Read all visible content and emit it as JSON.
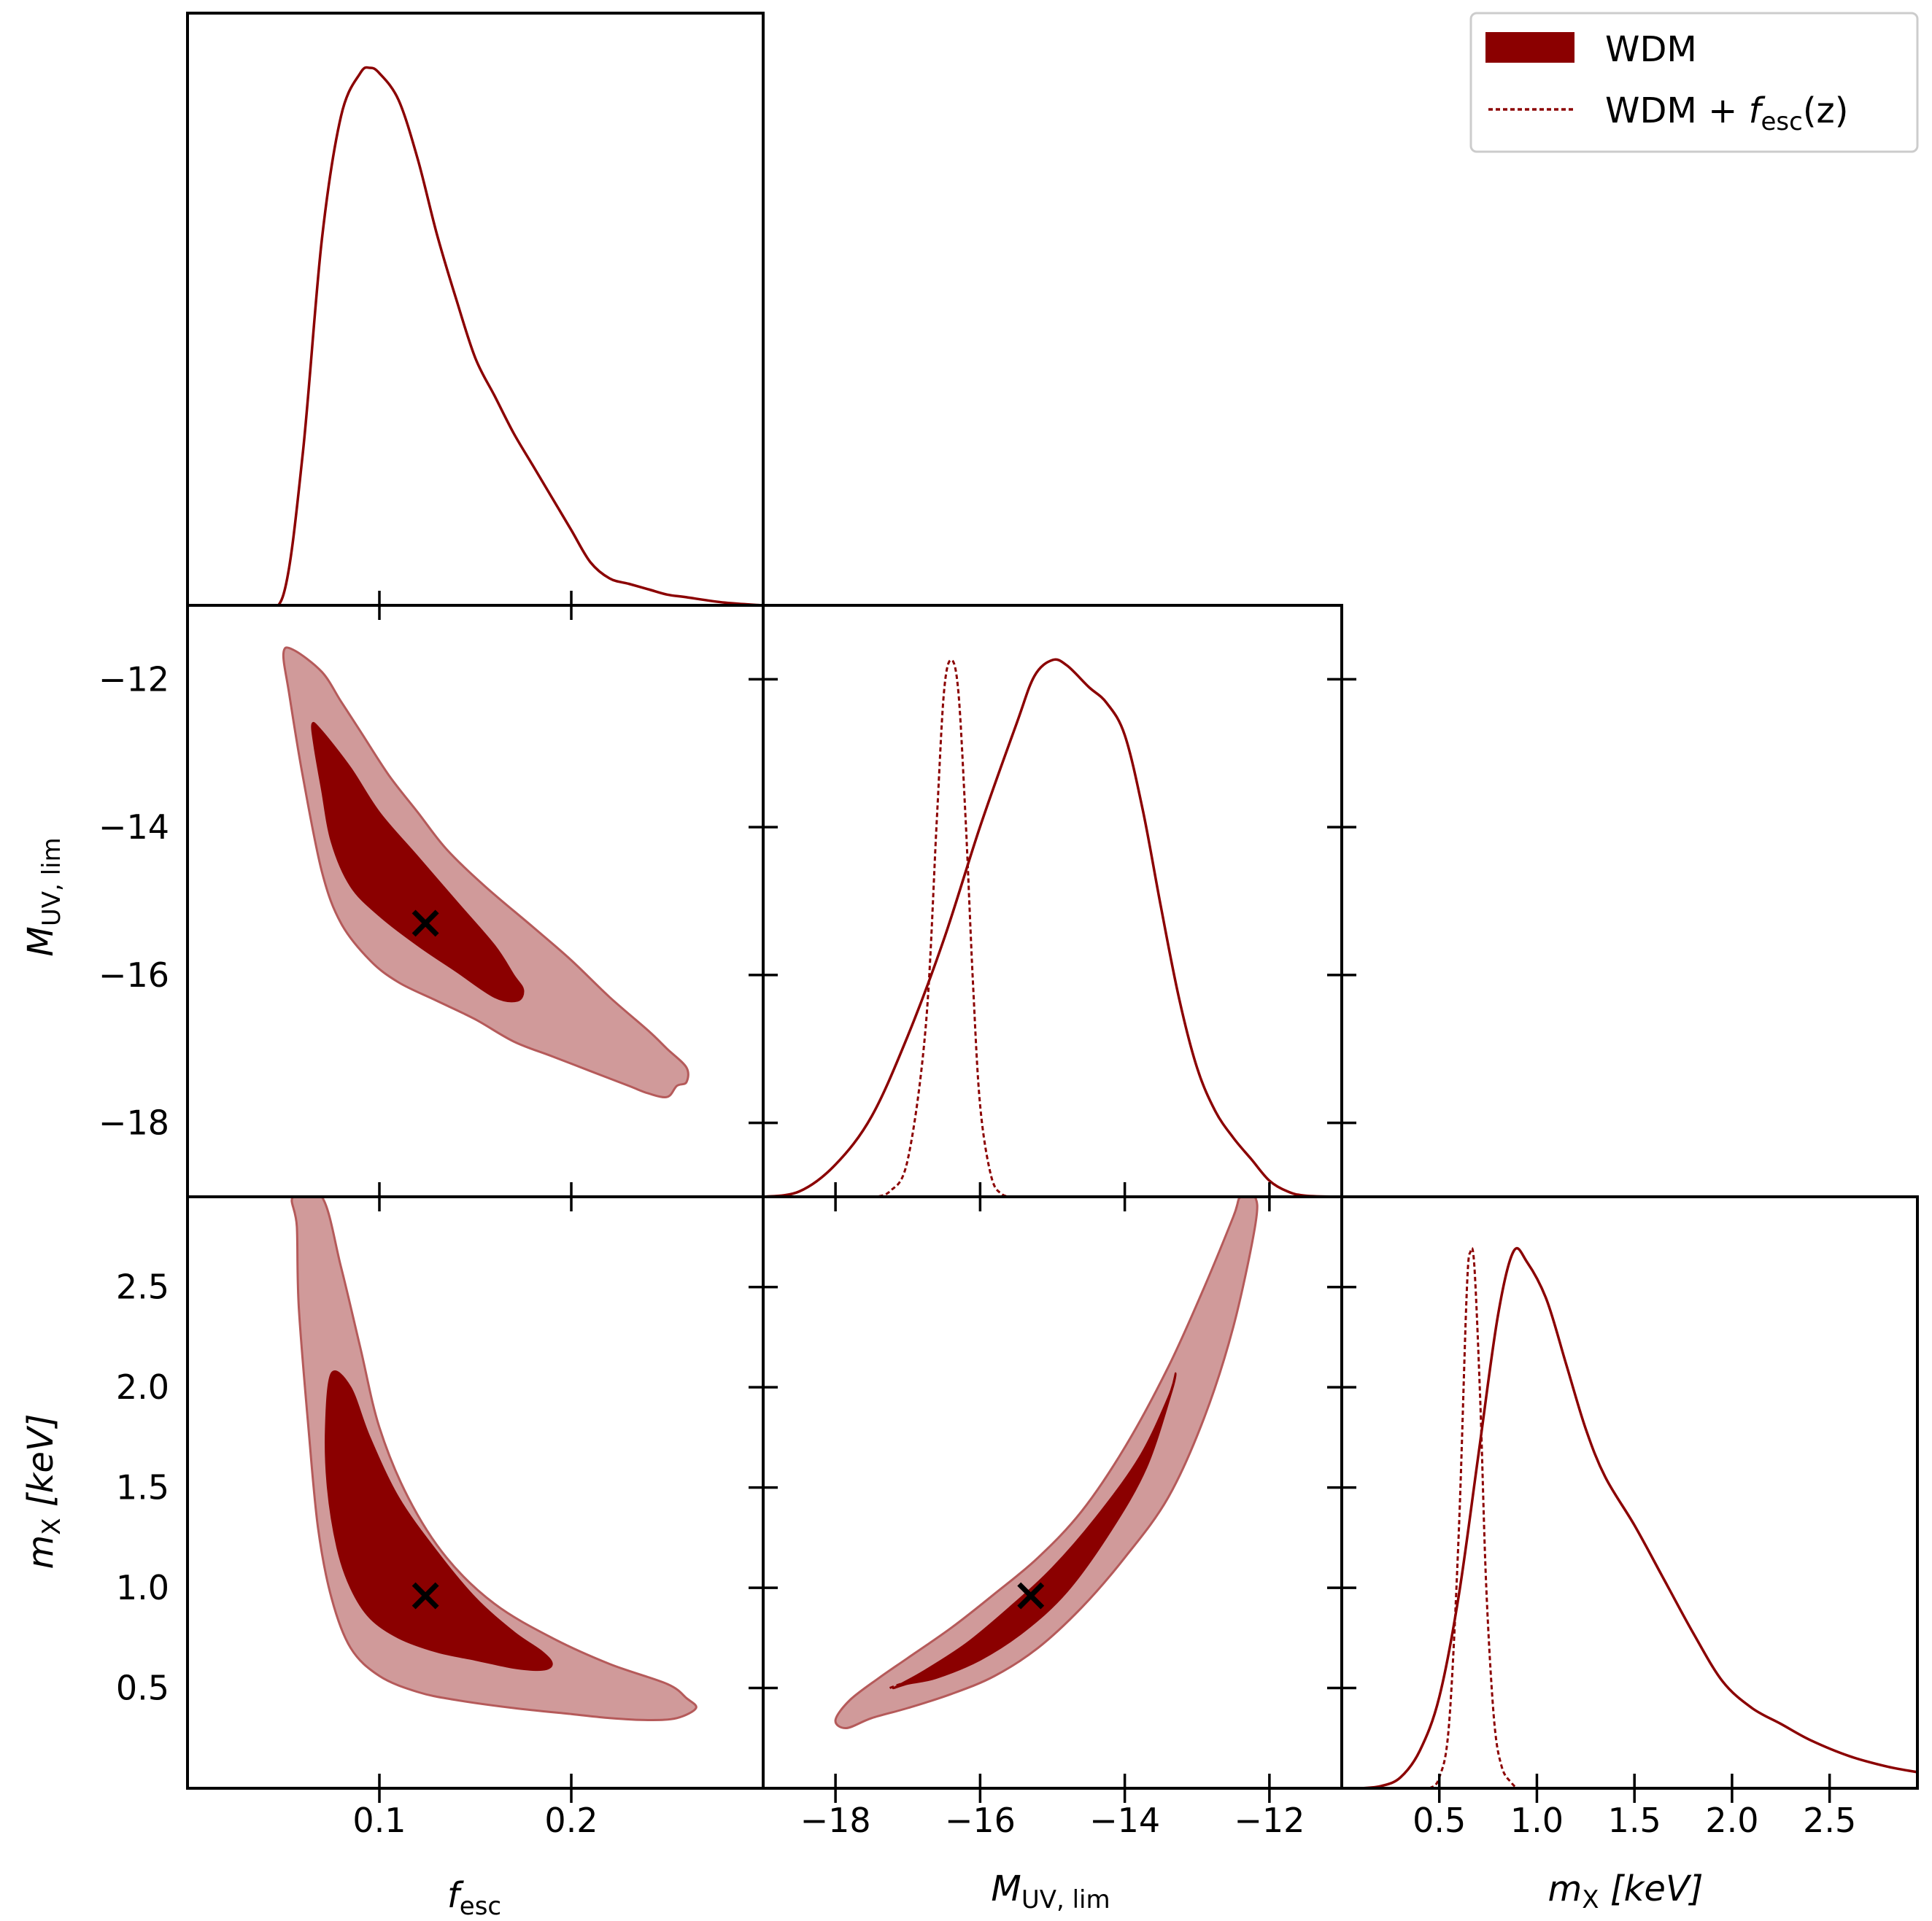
{
  "legend": {
    "placement": "top-right",
    "entries": [
      {
        "label": "WDM",
        "style": "filled"
      },
      {
        "label": "WDM + f_esc(z)",
        "label_main": "WDM + ",
        "label_f": "f",
        "label_sub": "esc",
        "label_arg": "(z)",
        "style": "dashed"
      }
    ]
  },
  "colors": {
    "wdm": "#8b0000",
    "wdm_contour_outer": "#d09a9a",
    "wdm_contour_outer_edge": "#b55a5a",
    "best_fit_marker": "#000000"
  },
  "axis_labels": {
    "fesc": {
      "main": "f",
      "sub": "esc"
    },
    "muv": {
      "main": "M",
      "sub": "UV, lim"
    },
    "mx": {
      "main": "m",
      "sub": "X",
      "unit": "[keV]"
    }
  },
  "chart_data": {
    "type": "corner",
    "parameters": [
      "fesc",
      "muv",
      "mx"
    ],
    "ranges": {
      "fesc": [
        0.0,
        0.3
      ],
      "muv": [
        -19.0,
        -11.0
      ],
      "mx": [
        0.0,
        2.95
      ]
    },
    "ticks": {
      "fesc": {
        "values": [
          0.1,
          0.2
        ],
        "labels": [
          "0.1",
          "0.2"
        ]
      },
      "muv": {
        "values": [
          -18,
          -16,
          -14,
          -12
        ],
        "labels": [
          "−18",
          "−16",
          "−14",
          "−12"
        ]
      },
      "mx_left": {
        "values": [
          0.5,
          1.0,
          1.5,
          2.0,
          2.5
        ],
        "labels": [
          "0.5",
          "1.0",
          "1.5",
          "2.0",
          "2.5"
        ]
      },
      "mx_bottom": {
        "values": [
          0.5,
          1.0,
          1.5,
          2.0,
          2.5
        ],
        "labels": [
          "0.5",
          "1.0",
          "1.5",
          "2.0",
          "2.5"
        ]
      }
    },
    "best_fit": {
      "fesc": 0.124,
      "muv": -15.3,
      "mx": 0.96
    },
    "marginals": {
      "fesc_wdm": [
        [
          0.037,
          0
        ],
        [
          0.05,
          0.02
        ],
        [
          0.06,
          0.28
        ],
        [
          0.07,
          0.68
        ],
        [
          0.08,
          0.91
        ],
        [
          0.09,
          0.99
        ],
        [
          0.095,
          1.0
        ],
        [
          0.1,
          0.99
        ],
        [
          0.11,
          0.94
        ],
        [
          0.12,
          0.83
        ],
        [
          0.13,
          0.69
        ],
        [
          0.14,
          0.57
        ],
        [
          0.15,
          0.46
        ],
        [
          0.16,
          0.39
        ],
        [
          0.17,
          0.32
        ],
        [
          0.18,
          0.26
        ],
        [
          0.19,
          0.2
        ],
        [
          0.2,
          0.14
        ],
        [
          0.21,
          0.08
        ],
        [
          0.22,
          0.05
        ],
        [
          0.23,
          0.04
        ],
        [
          0.24,
          0.03
        ],
        [
          0.25,
          0.02
        ],
        [
          0.26,
          0.015
        ],
        [
          0.28,
          0.005
        ],
        [
          0.3,
          0
        ]
      ],
      "muv_wdm": [
        [
          -19,
          0
        ],
        [
          -18.5,
          0.01
        ],
        [
          -18,
          0.06
        ],
        [
          -17.5,
          0.15
        ],
        [
          -17,
          0.3
        ],
        [
          -16.5,
          0.48
        ],
        [
          -16,
          0.69
        ],
        [
          -15.5,
          0.88
        ],
        [
          -15.25,
          0.97
        ],
        [
          -15,
          1.0
        ],
        [
          -14.8,
          0.99
        ],
        [
          -14.5,
          0.95
        ],
        [
          -14.25,
          0.92
        ],
        [
          -14,
          0.86
        ],
        [
          -13.75,
          0.72
        ],
        [
          -13.5,
          0.54
        ],
        [
          -13.25,
          0.37
        ],
        [
          -13,
          0.24
        ],
        [
          -12.75,
          0.16
        ],
        [
          -12.5,
          0.11
        ],
        [
          -12.25,
          0.07
        ],
        [
          -12,
          0.03
        ],
        [
          -11.75,
          0.01
        ],
        [
          -11.5,
          0.002
        ],
        [
          -11,
          0
        ]
      ],
      "muv_wdm_fesc_z": [
        [
          -17.5,
          0
        ],
        [
          -17.25,
          0.01
        ],
        [
          -17,
          0.07
        ],
        [
          -16.75,
          0.32
        ],
        [
          -16.6,
          0.7
        ],
        [
          -16.5,
          0.94
        ],
        [
          -16.4,
          1.0
        ],
        [
          -16.3,
          0.94
        ],
        [
          -16.2,
          0.7
        ],
        [
          -16.1,
          0.4
        ],
        [
          -16,
          0.17
        ],
        [
          -15.85,
          0.04
        ],
        [
          -15.7,
          0.005
        ],
        [
          -15.5,
          0
        ]
      ],
      "mx_wdm": [
        [
          0.1,
          0
        ],
        [
          0.2,
          0.004
        ],
        [
          0.3,
          0.02
        ],
        [
          0.4,
          0.07
        ],
        [
          0.5,
          0.17
        ],
        [
          0.6,
          0.36
        ],
        [
          0.7,
          0.62
        ],
        [
          0.8,
          0.88
        ],
        [
          0.88,
          1.0
        ],
        [
          0.95,
          0.98
        ],
        [
          1.05,
          0.91
        ],
        [
          1.15,
          0.79
        ],
        [
          1.25,
          0.67
        ],
        [
          1.35,
          0.58
        ],
        [
          1.5,
          0.49
        ],
        [
          1.65,
          0.39
        ],
        [
          1.8,
          0.29
        ],
        [
          1.95,
          0.2
        ],
        [
          2.1,
          0.15
        ],
        [
          2.25,
          0.12
        ],
        [
          2.4,
          0.09
        ],
        [
          2.6,
          0.06
        ],
        [
          2.8,
          0.04
        ],
        [
          2.95,
          0.03
        ]
      ],
      "mx_wdm_fesc_z": [
        [
          0.45,
          0
        ],
        [
          0.5,
          0.02
        ],
        [
          0.55,
          0.12
        ],
        [
          0.6,
          0.48
        ],
        [
          0.64,
          0.92
        ],
        [
          0.66,
          1.0
        ],
        [
          0.68,
          0.97
        ],
        [
          0.71,
          0.72
        ],
        [
          0.74,
          0.38
        ],
        [
          0.78,
          0.13
        ],
        [
          0.82,
          0.04
        ],
        [
          0.87,
          0.01
        ],
        [
          0.9,
          0
        ]
      ]
    },
    "contours": {
      "fesc_muv": {
        "outer": [
          [
            0.05,
            -11.65
          ],
          [
            0.055,
            -11.6
          ],
          [
            0.07,
            -11.9
          ],
          [
            0.08,
            -12.3
          ],
          [
            0.09,
            -12.7
          ],
          [
            0.105,
            -13.3
          ],
          [
            0.12,
            -13.8
          ],
          [
            0.135,
            -14.3
          ],
          [
            0.155,
            -14.8
          ],
          [
            0.18,
            -15.35
          ],
          [
            0.2,
            -15.8
          ],
          [
            0.22,
            -16.3
          ],
          [
            0.24,
            -16.75
          ],
          [
            0.25,
            -17.0
          ],
          [
            0.26,
            -17.25
          ],
          [
            0.26,
            -17.45
          ],
          [
            0.255,
            -17.5
          ],
          [
            0.25,
            -17.65
          ],
          [
            0.24,
            -17.6
          ],
          [
            0.23,
            -17.5
          ],
          [
            0.21,
            -17.3
          ],
          [
            0.19,
            -17.1
          ],
          [
            0.17,
            -16.9
          ],
          [
            0.15,
            -16.6
          ],
          [
            0.13,
            -16.35
          ],
          [
            0.11,
            -16.1
          ],
          [
            0.095,
            -15.8
          ],
          [
            0.08,
            -15.3
          ],
          [
            0.07,
            -14.6
          ],
          [
            0.06,
            -13.3
          ],
          [
            0.053,
            -12.2
          ]
        ],
        "inner": [
          [
            0.065,
            -12.6
          ],
          [
            0.07,
            -12.7
          ],
          [
            0.085,
            -13.2
          ],
          [
            0.1,
            -13.8
          ],
          [
            0.12,
            -14.4
          ],
          [
            0.14,
            -15.0
          ],
          [
            0.16,
            -15.6
          ],
          [
            0.17,
            -16.0
          ],
          [
            0.175,
            -16.2
          ],
          [
            0.172,
            -16.35
          ],
          [
            0.16,
            -16.3
          ],
          [
            0.14,
            -15.95
          ],
          [
            0.12,
            -15.6
          ],
          [
            0.1,
            -15.2
          ],
          [
            0.085,
            -14.8
          ],
          [
            0.075,
            -14.2
          ],
          [
            0.07,
            -13.5
          ],
          [
            0.066,
            -12.9
          ]
        ]
      },
      "fesc_mx": {
        "outer": [
          [
            0.055,
            2.95
          ],
          [
            0.07,
            2.95
          ],
          [
            0.08,
            2.6
          ],
          [
            0.09,
            2.2
          ],
          [
            0.1,
            1.8
          ],
          [
            0.115,
            1.45
          ],
          [
            0.135,
            1.15
          ],
          [
            0.16,
            0.92
          ],
          [
            0.19,
            0.75
          ],
          [
            0.22,
            0.62
          ],
          [
            0.25,
            0.52
          ],
          [
            0.26,
            0.45
          ],
          [
            0.265,
            0.4
          ],
          [
            0.255,
            0.35
          ],
          [
            0.24,
            0.34
          ],
          [
            0.22,
            0.35
          ],
          [
            0.2,
            0.37
          ],
          [
            0.17,
            0.4
          ],
          [
            0.14,
            0.44
          ],
          [
            0.12,
            0.48
          ],
          [
            0.1,
            0.56
          ],
          [
            0.085,
            0.7
          ],
          [
            0.075,
            0.95
          ],
          [
            0.068,
            1.3
          ],
          [
            0.063,
            1.8
          ],
          [
            0.058,
            2.4
          ],
          [
            0.057,
            2.8
          ]
        ],
        "inner": [
          [
            0.075,
            2.07
          ],
          [
            0.085,
            2.0
          ],
          [
            0.095,
            1.75
          ],
          [
            0.11,
            1.45
          ],
          [
            0.13,
            1.18
          ],
          [
            0.15,
            0.95
          ],
          [
            0.17,
            0.78
          ],
          [
            0.185,
            0.68
          ],
          [
            0.19,
            0.62
          ],
          [
            0.185,
            0.59
          ],
          [
            0.17,
            0.6
          ],
          [
            0.15,
            0.64
          ],
          [
            0.13,
            0.68
          ],
          [
            0.11,
            0.75
          ],
          [
            0.095,
            0.85
          ],
          [
            0.085,
            1.0
          ],
          [
            0.078,
            1.2
          ],
          [
            0.073,
            1.5
          ],
          [
            0.072,
            1.8
          ]
        ]
      },
      "muv_mx": {
        "outer": [
          [
            -18.0,
            0.34
          ],
          [
            -17.8,
            0.44
          ],
          [
            -17.4,
            0.55
          ],
          [
            -17.0,
            0.65
          ],
          [
            -16.4,
            0.8
          ],
          [
            -15.8,
            0.97
          ],
          [
            -15.2,
            1.15
          ],
          [
            -14.6,
            1.38
          ],
          [
            -14.0,
            1.7
          ],
          [
            -13.4,
            2.1
          ],
          [
            -12.9,
            2.5
          ],
          [
            -12.5,
            2.85
          ],
          [
            -12.4,
            2.95
          ],
          [
            -12.2,
            2.95
          ],
          [
            -12.2,
            2.8
          ],
          [
            -12.5,
            2.3
          ],
          [
            -12.9,
            1.85
          ],
          [
            -13.4,
            1.45
          ],
          [
            -14.0,
            1.15
          ],
          [
            -14.6,
            0.9
          ],
          [
            -15.2,
            0.7
          ],
          [
            -15.8,
            0.56
          ],
          [
            -16.4,
            0.47
          ],
          [
            -17.0,
            0.4
          ],
          [
            -17.5,
            0.35
          ],
          [
            -17.85,
            0.3
          ]
        ],
        "inner": [
          [
            -17.2,
            0.5
          ],
          [
            -16.8,
            0.58
          ],
          [
            -16.2,
            0.72
          ],
          [
            -15.6,
            0.9
          ],
          [
            -15.0,
            1.1
          ],
          [
            -14.4,
            1.35
          ],
          [
            -13.8,
            1.65
          ],
          [
            -13.4,
            1.95
          ],
          [
            -13.3,
            2.07
          ],
          [
            -13.35,
            1.98
          ],
          [
            -13.7,
            1.6
          ],
          [
            -14.2,
            1.28
          ],
          [
            -14.8,
            0.98
          ],
          [
            -15.4,
            0.78
          ],
          [
            -16.0,
            0.64
          ],
          [
            -16.6,
            0.55
          ],
          [
            -17.0,
            0.52
          ]
        ]
      },
      "muv_mx_fesc_z": [
        [
          -17.25,
          0.5
        ],
        [
          -17.1,
          0.52
        ],
        [
          -16.9,
          0.54
        ],
        [
          -16.75,
          0.57
        ],
        [
          -16.6,
          0.6
        ]
      ]
    }
  }
}
